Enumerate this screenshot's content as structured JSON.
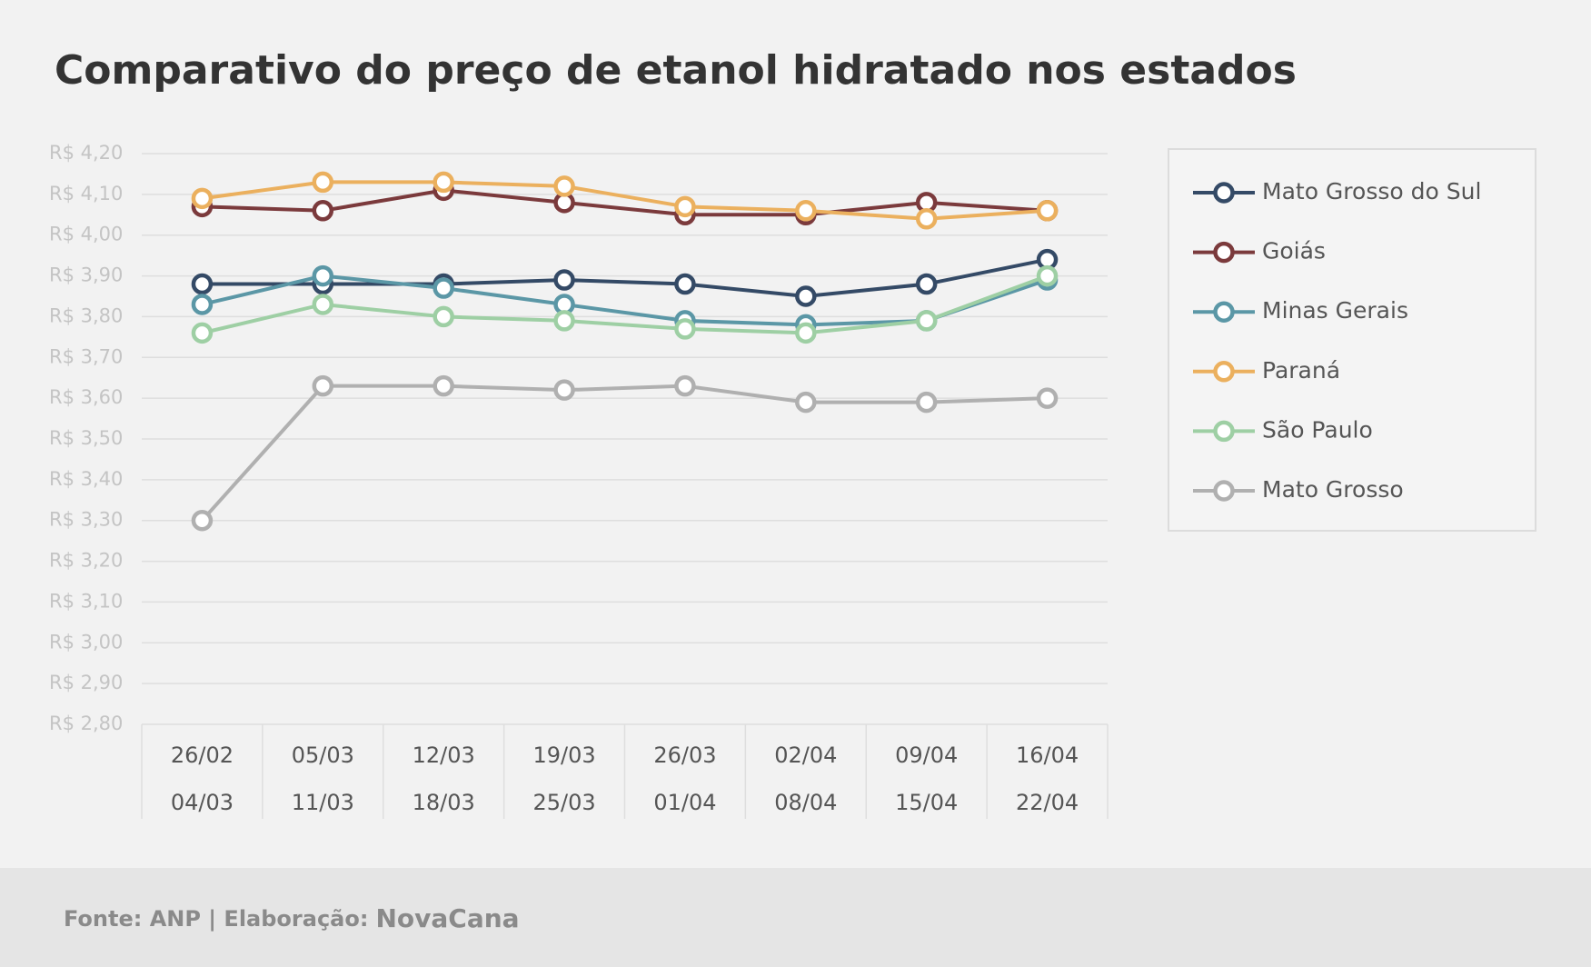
{
  "chart_data": {
    "type": "line",
    "title": "Comparativo do preço de etanol hidratado nos estados",
    "categories": [
      [
        "26/02",
        "04/03"
      ],
      [
        "05/03",
        "11/03"
      ],
      [
        "12/03",
        "18/03"
      ],
      [
        "19/03",
        "25/03"
      ],
      [
        "26/03",
        "01/04"
      ],
      [
        "02/04",
        "08/04"
      ],
      [
        "09/04",
        "15/04"
      ],
      [
        "16/04",
        "22/04"
      ]
    ],
    "series": [
      {
        "name": "Mato Grosso do Sul",
        "color": "#344a66",
        "values": [
          3.88,
          3.88,
          3.88,
          3.89,
          3.88,
          3.85,
          3.88,
          3.94
        ]
      },
      {
        "name": "Goiás",
        "color": "#7b3a3c",
        "values": [
          4.07,
          4.06,
          4.11,
          4.08,
          4.05,
          4.05,
          4.08,
          4.06
        ]
      },
      {
        "name": "Minas Gerais",
        "color": "#5b97a6",
        "values": [
          3.83,
          3.9,
          3.87,
          3.83,
          3.79,
          3.78,
          3.79,
          3.89
        ]
      },
      {
        "name": "Paraná",
        "color": "#ebb05e",
        "values": [
          4.09,
          4.13,
          4.13,
          4.12,
          4.07,
          4.06,
          4.04,
          4.06
        ]
      },
      {
        "name": "São Paulo",
        "color": "#9ecfa4",
        "values": [
          3.76,
          3.83,
          3.8,
          3.79,
          3.77,
          3.76,
          3.79,
          3.9
        ]
      },
      {
        "name": "Mato Grosso",
        "color": "#b0b0b0",
        "values": [
          3.3,
          3.63,
          3.63,
          3.62,
          3.63,
          3.59,
          3.59,
          3.6
        ]
      }
    ],
    "ylim": [
      2.8,
      4.2
    ],
    "yticks": [
      {
        "value": 4.2,
        "label": "R$ 4,20"
      },
      {
        "value": 4.1,
        "label": "R$ 4,10"
      },
      {
        "value": 4.0,
        "label": "R$ 4,00"
      },
      {
        "value": 3.9,
        "label": "R$ 3,90"
      },
      {
        "value": 3.8,
        "label": "R$ 3,80"
      },
      {
        "value": 3.7,
        "label": "R$ 3,70"
      },
      {
        "value": 3.6,
        "label": "R$ 3,60"
      },
      {
        "value": 3.5,
        "label": "R$ 3,50"
      },
      {
        "value": 3.4,
        "label": "R$ 3,40"
      },
      {
        "value": 3.3,
        "label": "R$ 3,30"
      },
      {
        "value": 3.2,
        "label": "R$ 3,20"
      },
      {
        "value": 3.1,
        "label": "R$ 3,10"
      },
      {
        "value": 3.0,
        "label": "R$ 3,00"
      },
      {
        "value": 2.9,
        "label": "R$ 2,90"
      },
      {
        "value": 2.8,
        "label": "R$ 2,80"
      }
    ],
    "grid": true,
    "legend": "right"
  },
  "footer": {
    "source": "Fonte: ANP | Elaboração:",
    "brand": "NovaCana"
  }
}
